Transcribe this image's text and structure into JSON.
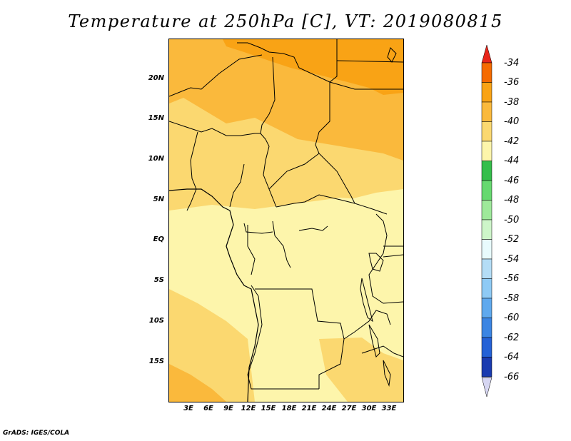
{
  "title": "Temperature at 250hPa [C], VT: 2019080815",
  "credit": "GrADS: IGES/COLA",
  "map": {
    "lat_ticks": [
      "20N",
      "15N",
      "10N",
      "5N",
      "EQ",
      "5S",
      "10S",
      "15S"
    ],
    "lon_ticks": [
      "3E",
      "6E",
      "9E",
      "12E",
      "15E",
      "18E",
      "21E",
      "24E",
      "27E",
      "30E",
      "33E"
    ],
    "fill_colors": {
      "c34_36": "#f56a00",
      "c36_38": "#f9a315",
      "c38_40": "#fab93c",
      "c40_42": "#fbd870",
      "c42_44": "#fdf5ab",
      "border": "#000000"
    }
  },
  "colorbar": {
    "labels": [
      "-34",
      "-36",
      "-38",
      "-40",
      "-42",
      "-44",
      "-46",
      "-48",
      "-50",
      "-52",
      "-54",
      "-56",
      "-58",
      "-60",
      "-62",
      "-64",
      "-66"
    ],
    "top_triangle_color": "#e8251a",
    "bottom_triangle_color": "#d6d6f2",
    "segment_colors": [
      "#f56a00",
      "#f9a315",
      "#fab93c",
      "#fbd870",
      "#fdf5ab",
      "#34be4b",
      "#66d96f",
      "#9ee99a",
      "#cdf5c9",
      "#e8fbfd",
      "#b4ddf6",
      "#8ecaf5",
      "#5fa9ee",
      "#3b85e3",
      "#2461d6",
      "#1a3bb0",
      "#0c1470"
    ]
  }
}
